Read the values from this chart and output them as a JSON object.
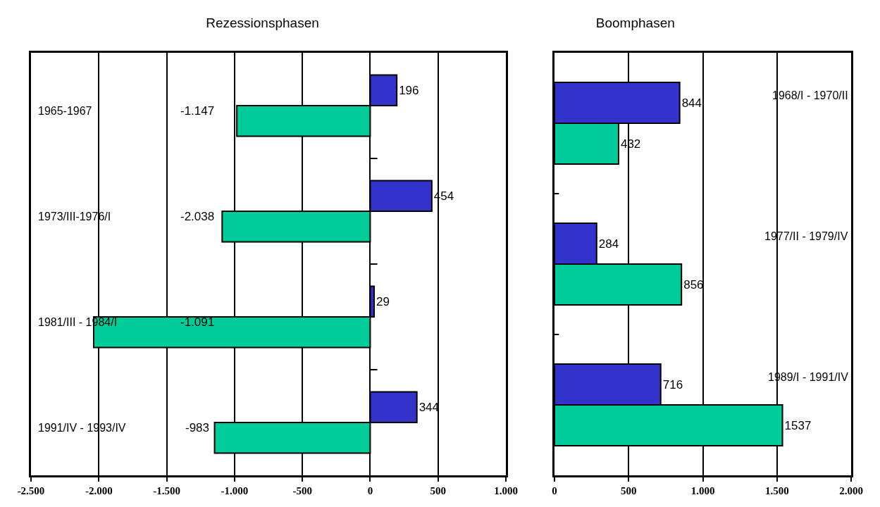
{
  "chart_data": [
    {
      "type": "bar",
      "title": "Rezessionsphasen",
      "orientation": "horizontal",
      "categories": [
        "1965-1967",
        "1973/III-1976/I",
        "1981/III - 1984/I",
        "1991/IV - 1993/IV"
      ],
      "series": [
        {
          "color": "#3333cc",
          "values": [
            196,
            454,
            29,
            344
          ],
          "value_labels": [
            "196",
            "454",
            "29",
            "344"
          ]
        },
        {
          "color": "#00cc99",
          "values": [
            -983,
            -1091,
            -2038,
            -1147
          ]
        }
      ],
      "annotations": [
        "-1.147",
        "-2.038",
        "-1.091",
        "-983"
      ],
      "xlim": [
        -2500,
        1000
      ],
      "xticks": [
        {
          "value": -2500,
          "label": "-2.500"
        },
        {
          "value": -2000,
          "label": "-2.000"
        },
        {
          "value": -1500,
          "label": "-1.500"
        },
        {
          "value": -1000,
          "label": "-1.000"
        },
        -500,
        0,
        500,
        {
          "value": 1000,
          "label": "1.000"
        }
      ],
      "grid": "x"
    },
    {
      "type": "bar",
      "title": "Boomphasen",
      "orientation": "horizontal",
      "categories": [
        "1968/I - 1970/II",
        "1977/II - 1979/IV",
        "1989/I - 1991/IV"
      ],
      "series": [
        {
          "color": "#3333cc",
          "values": [
            844,
            284,
            716
          ]
        },
        {
          "color": "#00cc99",
          "values": [
            432,
            856,
            1537
          ]
        }
      ],
      "xlim": [
        0,
        2000
      ],
      "xticks": [
        0,
        500,
        {
          "value": 1000,
          "label": "1.000"
        },
        {
          "value": 1500,
          "label": "1.500"
        },
        {
          "value": 2000,
          "label": "2.000"
        }
      ],
      "grid": "x",
      "data_labels": true
    }
  ]
}
